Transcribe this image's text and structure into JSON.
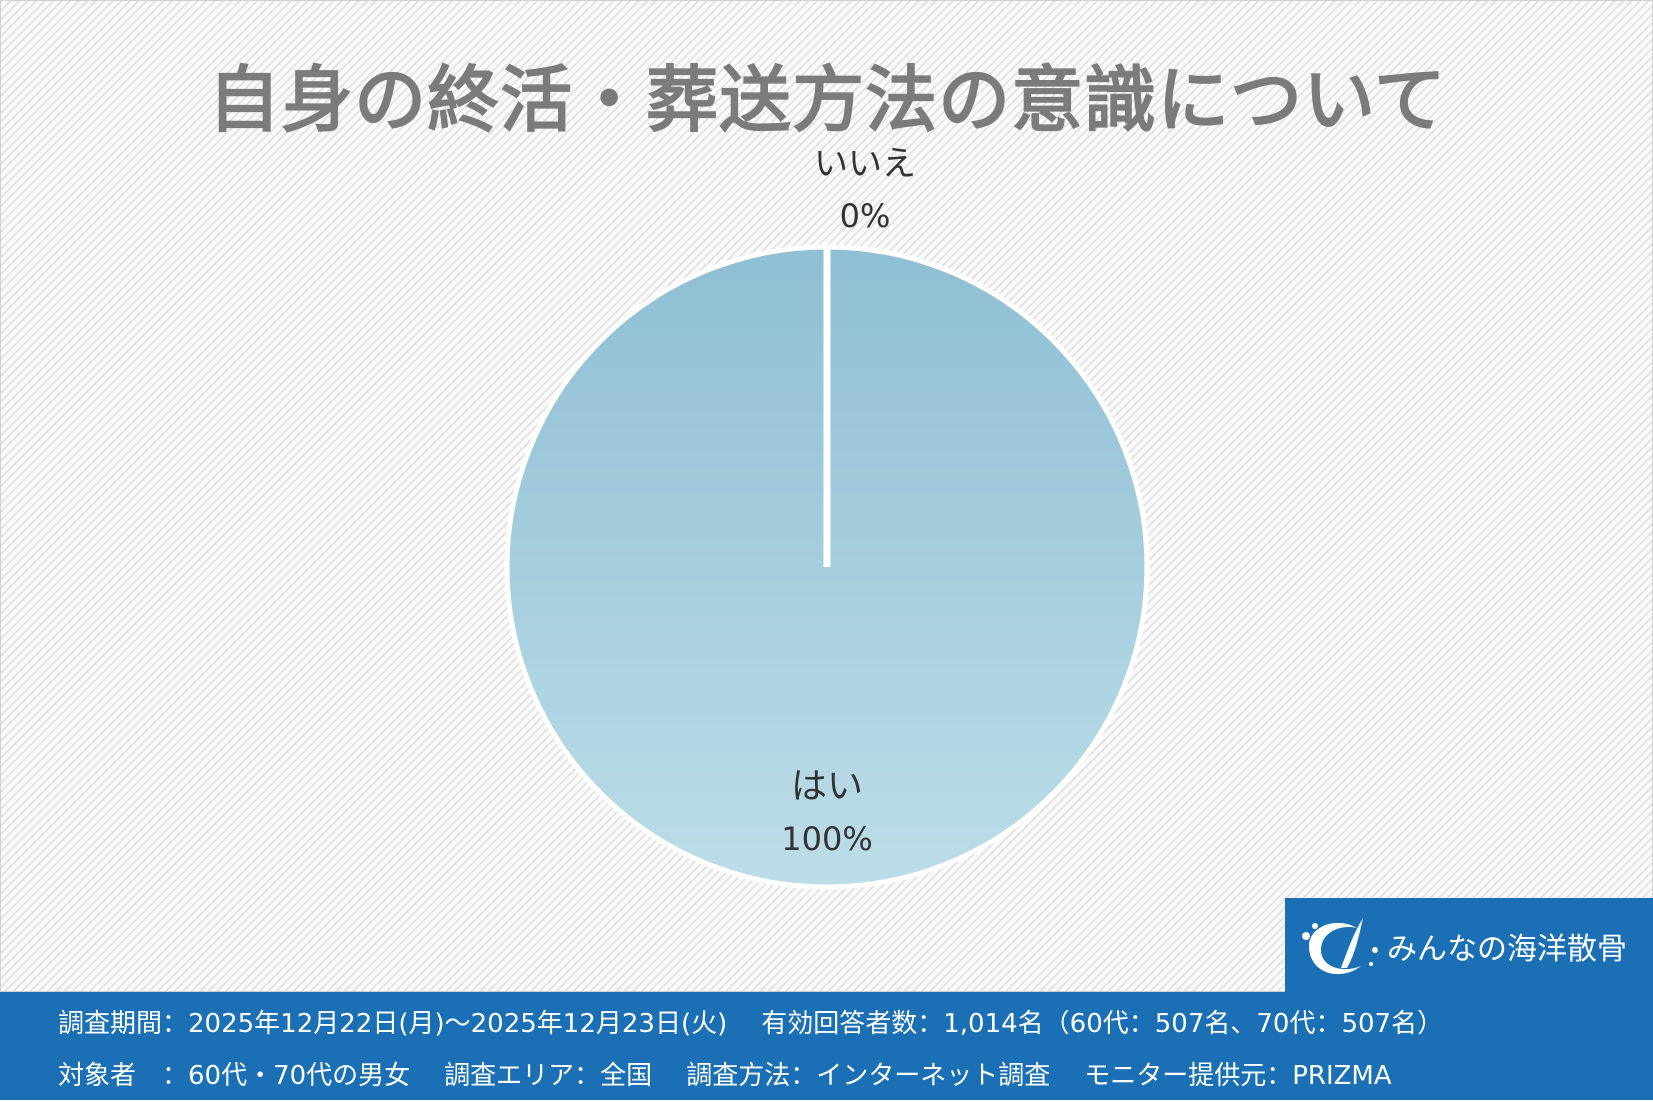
{
  "chart_data": {
    "type": "pie",
    "title": "自身の終活・葬送方法の意識について",
    "slices": [
      {
        "label": "はい",
        "value": 100,
        "value_label": "100%",
        "color": "#a3cadb"
      },
      {
        "label": "いいえ",
        "value": 0,
        "value_label": "0%",
        "color": "#ffffff"
      }
    ],
    "legend": "none"
  },
  "logo": {
    "text": "みんなの海洋散骨"
  },
  "footer": {
    "row1": {
      "period": "調査期間：2025年12月22日(月)～2025年12月23日(火)",
      "respondents": "有効回答者数：1,014名（60代：507名、70代：507名）"
    },
    "row2": {
      "target": "対象者　：60代・70代の男女",
      "area": "調査エリア：全国",
      "method": "調査方法：インターネット調査",
      "monitor": "モニター提供元：PRIZMA"
    }
  }
}
